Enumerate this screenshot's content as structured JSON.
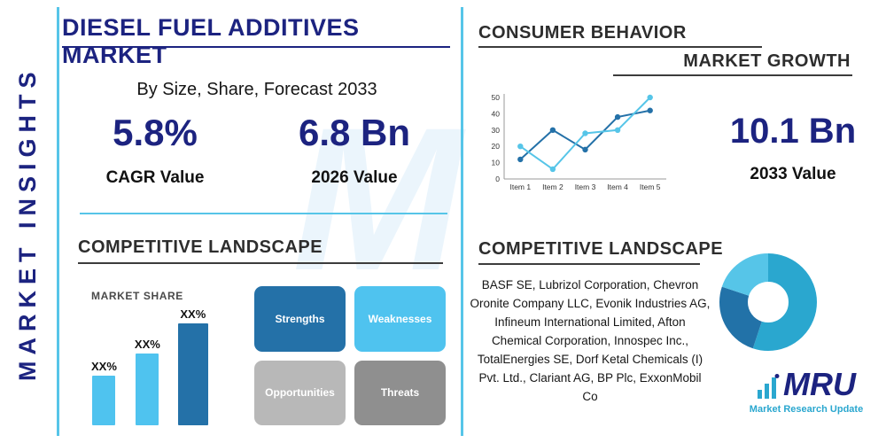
{
  "watermark": "M",
  "left_rail": {
    "label": "MARKET INSIGHTS"
  },
  "header": {
    "title": "DIESEL FUEL ADDITIVES MARKET",
    "subtitle": "By Size, Share, Forecast 2033"
  },
  "stats": {
    "cagr": {
      "value": "5.8%",
      "label": "CAGR Value"
    },
    "y2026": {
      "value": "6.8 Bn",
      "label": "2026 Value"
    },
    "y2033": {
      "value": "10.1 Bn",
      "label": "2033 Value"
    }
  },
  "sections": {
    "consumer_behavior": "CONSUMER BEHAVIOR",
    "market_growth": "MARKET GROWTH",
    "competitive_left": "COMPETITIVE LANDSCAPE",
    "competitive_right": "COMPETITIVE LANDSCAPE"
  },
  "swot": {
    "items": [
      {
        "label": "Strengths",
        "color": "#2471a8"
      },
      {
        "label": "Weaknesses",
        "color": "#4fc3ef"
      },
      {
        "label": "Opportunities",
        "color": "#b8b8b8"
      },
      {
        "label": "Threats",
        "color": "#8f8f8f"
      }
    ]
  },
  "companies": "BASF SE, Lubrizol Corporation, Chevron Oronite Company LLC, Evonik Industries AG, Infineum International Limited, Afton Chemical Corporation, Innospec Inc., TotalEnergies SE, Dorf Ketal Chemicals (I) Pvt. Ltd., Clariant AG, BP Plc, ExxonMobil Co",
  "logo": {
    "name": "MRU",
    "tagline": "Market Research Update"
  },
  "colors": {
    "navy": "#1c2380",
    "accent": "#56c5e8",
    "heading": "#2d2d2d"
  },
  "chart_data": [
    {
      "type": "line",
      "title": "CONSUMER BEHAVIOR",
      "categories": [
        "Item 1",
        "Item 2",
        "Item 3",
        "Item 4",
        "Item 5"
      ],
      "series": [
        {
          "name": "dark-blue-series",
          "color": "#2471a8",
          "values": [
            12,
            30,
            18,
            38,
            42
          ]
        },
        {
          "name": "light-blue-series",
          "color": "#56c5e8",
          "values": [
            20,
            6,
            28,
            30,
            50
          ]
        }
      ],
      "ylim": [
        0,
        50
      ],
      "yticks": [
        0,
        10,
        20,
        30,
        40,
        50
      ],
      "grid": false,
      "legend": "none"
    },
    {
      "type": "bar",
      "title": "MARKET SHARE",
      "categories": [
        "XX%",
        "XX%",
        "XX%"
      ],
      "values": [
        30,
        44,
        62
      ],
      "colors": [
        "#4fc3ef",
        "#4fc3ef",
        "#2471a8"
      ],
      "ylim": [
        0,
        70
      ],
      "note": "bar heights unlabeled; XX% placeholders shown above bars"
    },
    {
      "type": "pie",
      "subtype": "donut",
      "values": [
        55,
        25,
        20
      ],
      "colors": [
        "#2aa7cf",
        "#2272a8",
        "#56c5e8"
      ],
      "note": "decorative donut, no labels"
    }
  ]
}
